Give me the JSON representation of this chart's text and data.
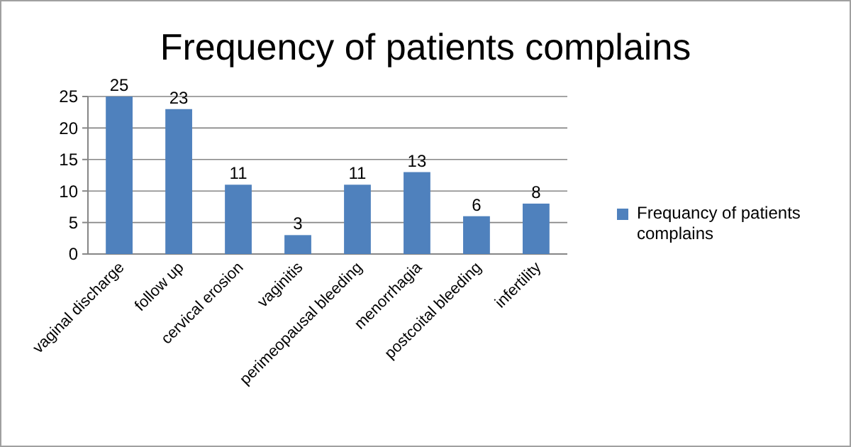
{
  "chart_data": {
    "type": "bar",
    "title": "Frequency of patients complains",
    "categories": [
      "vaginal discharge",
      "follow up",
      "cervical erosion",
      "vaginitis",
      "perimeopausal bleeding",
      "menorrhagia",
      "postcoital bleeding",
      "infertility"
    ],
    "series": [
      {
        "name": "Frequancy of patients complains",
        "color": "#4f81bd",
        "values": [
          25,
          23,
          11,
          3,
          11,
          13,
          6,
          8
        ]
      }
    ],
    "ylim": [
      0,
      25
    ],
    "yticks": [
      0,
      5,
      10,
      15,
      20,
      25
    ],
    "grid": "y",
    "legend": "right",
    "data_labels": true
  }
}
